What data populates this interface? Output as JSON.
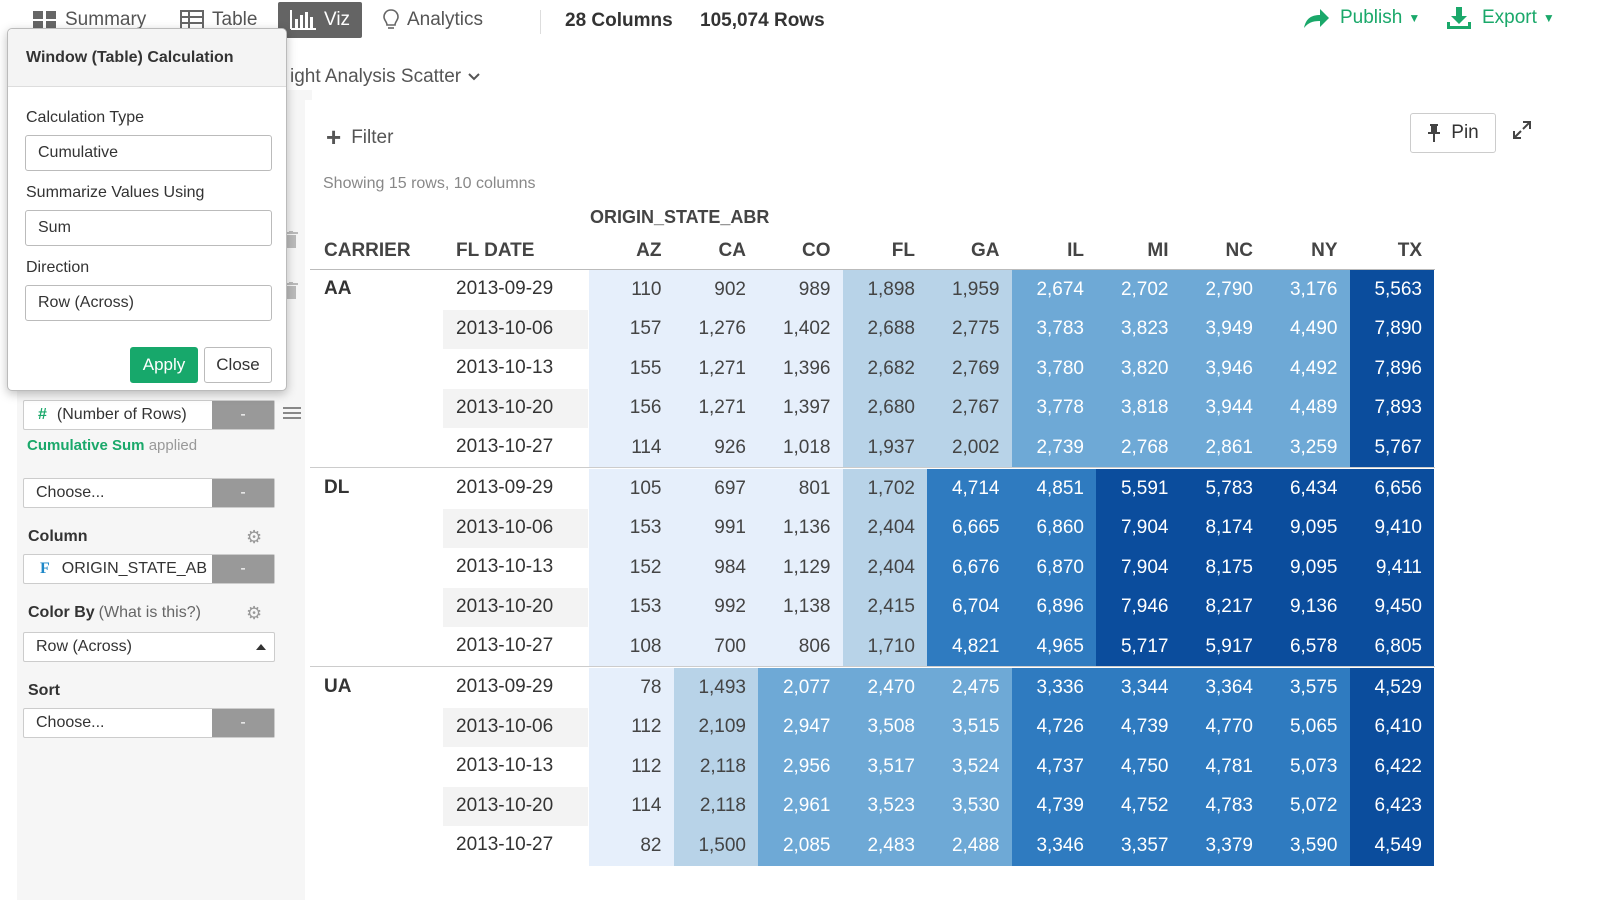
{
  "nav": {
    "tabs": [
      {
        "label": "Summary",
        "icon": "summary-grid-icon"
      },
      {
        "label": "Table",
        "icon": "table-icon"
      },
      {
        "label": "Viz",
        "icon": "bar-chart-icon"
      },
      {
        "label": "Analytics",
        "icon": "lightbulb-icon"
      }
    ],
    "active_tab": "Viz",
    "columns_count": "28",
    "columns_label": "Columns",
    "rows_count": "105,074",
    "rows_label": "Rows",
    "publish_label": "Publish",
    "export_label": "Export",
    "accent_color": "#1aa86a"
  },
  "chart_title": "ight Analysis Scatter",
  "popup": {
    "title": "Window (Table) Calculation",
    "calc_type_label": "Calculation Type",
    "calc_type_value": "Cumulative",
    "summarize_label": "Summarize Values Using",
    "summarize_value": "Sum",
    "direction_label": "Direction",
    "direction_value": "Row (Across)",
    "apply_label": "Apply",
    "close_label": "Close"
  },
  "sidebar": {
    "value_field": "(Number of Rows)",
    "value_field_icon": "#",
    "applied_calc": "Cumulative Sum",
    "applied_suffix": "applied",
    "choose1": "Choose...",
    "minus": "-",
    "column_label": "Column",
    "column_value": "ORIGIN_STATE_AB",
    "column_icon": "F",
    "color_by_label": "Color By",
    "color_by_note": "(What is this?)",
    "color_by_value": "Row (Across)",
    "sort_label": "Sort",
    "sort_value": "Choose..."
  },
  "toolbar": {
    "filter_label": "Filter",
    "pin_label": "Pin"
  },
  "table": {
    "showing": "Showing 15 rows, 10 columns",
    "column_group": "ORIGIN_STATE_ABR",
    "row_headers": [
      "CARRIER",
      "FL DATE"
    ],
    "columns": [
      "AZ",
      "CA",
      "CO",
      "FL",
      "GA",
      "IL",
      "MI",
      "NC",
      "NY",
      "TX"
    ],
    "groups": [
      {
        "carrier": "AA",
        "rows": [
          {
            "date": "2013-09-29",
            "values": [
              "110",
              "902",
              "989",
              "1,898",
              "1,959",
              "2,674",
              "2,702",
              "2,790",
              "3,176",
              "5,563"
            ]
          },
          {
            "date": "2013-10-06",
            "values": [
              "157",
              "1,276",
              "1,402",
              "2,688",
              "2,775",
              "3,783",
              "3,823",
              "3,949",
              "4,490",
              "7,890"
            ]
          },
          {
            "date": "2013-10-13",
            "values": [
              "155",
              "1,271",
              "1,396",
              "2,682",
              "2,769",
              "3,780",
              "3,820",
              "3,946",
              "4,492",
              "7,896"
            ]
          },
          {
            "date": "2013-10-20",
            "values": [
              "156",
              "1,271",
              "1,397",
              "2,680",
              "2,767",
              "3,778",
              "3,818",
              "3,944",
              "4,489",
              "7,893"
            ]
          },
          {
            "date": "2013-10-27",
            "values": [
              "114",
              "926",
              "1,018",
              "1,937",
              "2,002",
              "2,739",
              "2,768",
              "2,861",
              "3,259",
              "5,767"
            ]
          }
        ],
        "shades": [
          0,
          0,
          0,
          1,
          1,
          2,
          2,
          2,
          2,
          4
        ]
      },
      {
        "carrier": "DL",
        "rows": [
          {
            "date": "2013-09-29",
            "values": [
              "105",
              "697",
              "801",
              "1,702",
              "4,714",
              "4,851",
              "5,591",
              "5,783",
              "6,434",
              "6,656"
            ]
          },
          {
            "date": "2013-10-06",
            "values": [
              "153",
              "991",
              "1,136",
              "2,404",
              "6,665",
              "6,860",
              "7,904",
              "8,174",
              "9,095",
              "9,410"
            ]
          },
          {
            "date": "2013-10-13",
            "values": [
              "152",
              "984",
              "1,129",
              "2,404",
              "6,676",
              "6,870",
              "7,904",
              "8,175",
              "9,095",
              "9,411"
            ]
          },
          {
            "date": "2013-10-20",
            "values": [
              "153",
              "992",
              "1,138",
              "2,415",
              "6,704",
              "6,896",
              "7,946",
              "8,217",
              "9,136",
              "9,450"
            ]
          },
          {
            "date": "2013-10-27",
            "values": [
              "108",
              "700",
              "806",
              "1,710",
              "4,821",
              "4,965",
              "5,717",
              "5,917",
              "6,578",
              "6,805"
            ]
          }
        ],
        "shades": [
          0,
          0,
          0,
          1,
          3,
          3,
          4,
          4,
          4,
          4
        ]
      },
      {
        "carrier": "UA",
        "rows": [
          {
            "date": "2013-09-29",
            "values": [
              "78",
              "1,493",
              "2,077",
              "2,470",
              "2,475",
              "3,336",
              "3,344",
              "3,364",
              "3,575",
              "4,529"
            ]
          },
          {
            "date": "2013-10-06",
            "values": [
              "112",
              "2,109",
              "2,947",
              "3,508",
              "3,515",
              "4,726",
              "4,739",
              "4,770",
              "5,065",
              "6,410"
            ]
          },
          {
            "date": "2013-10-13",
            "values": [
              "112",
              "2,118",
              "2,956",
              "3,517",
              "3,524",
              "4,737",
              "4,750",
              "4,781",
              "5,073",
              "6,422"
            ]
          },
          {
            "date": "2013-10-20",
            "values": [
              "114",
              "2,118",
              "2,961",
              "3,523",
              "3,530",
              "4,739",
              "4,752",
              "4,783",
              "5,072",
              "6,423"
            ]
          },
          {
            "date": "2013-10-27",
            "values": [
              "82",
              "1,500",
              "2,085",
              "2,483",
              "2,488",
              "3,346",
              "3,357",
              "3,379",
              "3,590",
              "4,549"
            ]
          }
        ],
        "shades": [
          0,
          1,
          2,
          2,
          2,
          3,
          3,
          3,
          3,
          4
        ]
      }
    ],
    "palette": [
      "#e6effb",
      "#b8d3e8",
      "#6ea9d6",
      "#2f7bc0",
      "#0b4d9d"
    ],
    "palette_text": [
      "#444444",
      "#444444",
      "#ffffff",
      "#ffffff",
      "#ffffff"
    ]
  }
}
